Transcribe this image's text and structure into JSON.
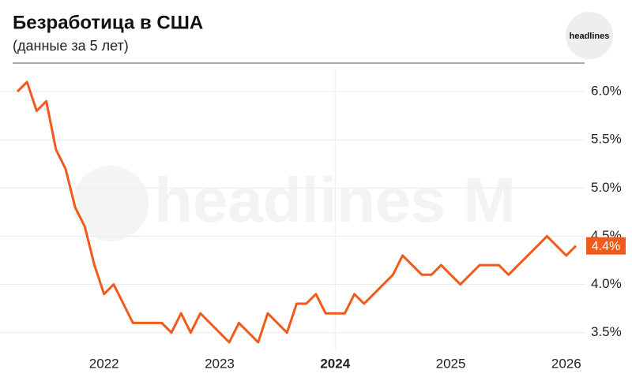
{
  "chart_data": {
    "type": "line",
    "title": "Безработица в США",
    "subtitle": "(данные за 5 лет)",
    "logo": "headlines",
    "watermark": "headlines M",
    "categories": [
      null,
      null,
      null,
      null,
      null,
      null,
      null,
      null,
      null,
      "2022",
      null,
      null,
      null,
      null,
      null,
      null,
      null,
      null,
      null,
      null,
      null,
      "2023",
      null,
      null,
      null,
      null,
      null,
      null,
      null,
      null,
      null,
      null,
      null,
      "2024",
      null,
      null,
      null,
      null,
      null,
      null,
      null,
      null,
      null,
      null,
      null,
      "2025",
      null,
      null,
      null,
      null,
      null,
      null,
      null,
      null,
      null,
      null,
      null,
      "2026",
      null
    ],
    "emphasized_category_index": 33,
    "values": [
      6.0,
      6.1,
      5.8,
      5.9,
      5.4,
      5.2,
      4.8,
      4.6,
      4.2,
      3.9,
      4.0,
      3.8,
      3.6,
      3.6,
      3.6,
      3.6,
      3.5,
      3.7,
      3.5,
      3.7,
      3.6,
      3.5,
      3.4,
      3.6,
      3.5,
      3.4,
      3.7,
      3.6,
      3.5,
      3.8,
      3.8,
      3.9,
      3.7,
      3.7,
      3.7,
      3.9,
      3.8,
      3.9,
      4.0,
      4.1,
      4.3,
      4.2,
      4.1,
      4.1,
      4.2,
      4.1,
      4.0,
      4.1,
      4.2,
      4.2,
      4.2,
      4.1,
      4.2,
      4.3,
      4.4,
      4.5,
      4.4,
      4.3,
      4.4
    ],
    "value_labels": [
      null,
      null,
      null,
      null,
      null,
      null,
      null,
      null,
      null,
      null,
      null,
      null,
      null,
      null,
      null,
      null,
      null,
      null,
      null,
      null,
      null,
      null,
      null,
      null,
      null,
      null,
      null,
      null,
      null,
      null,
      null,
      null,
      null,
      null,
      null,
      null,
      null,
      null,
      null,
      null,
      null,
      null,
      null,
      null,
      null,
      null,
      null,
      null,
      null,
      null,
      null,
      null,
      null,
      null,
      null,
      null,
      null,
      null,
      "4.4%"
    ],
    "color": "#f25a1a",
    "ylim": [
      3.35,
      6.23
    ],
    "yticks": [
      {
        "value": 3.5,
        "label": "3.5%"
      },
      {
        "value": 4.0,
        "label": "4.0%"
      },
      {
        "value": 4.5,
        "label": "4.5%"
      },
      {
        "value": 5.0,
        "label": "5.0%"
      },
      {
        "value": 5.5,
        "label": "5.5%"
      },
      {
        "value": 6.0,
        "label": "6.0%"
      }
    ],
    "grid": true
  }
}
